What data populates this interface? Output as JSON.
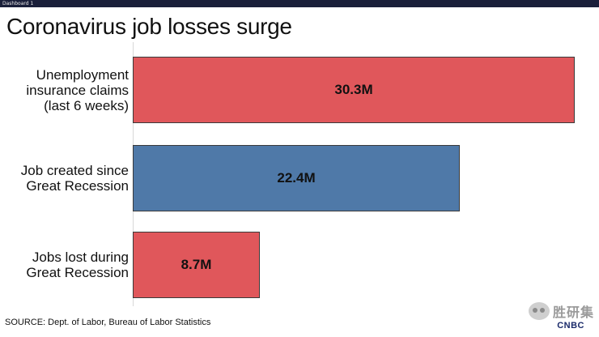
{
  "header": {
    "dashboard_label": "Dashboard 1"
  },
  "title": "Coronavirus job losses surge",
  "chart_data": {
    "type": "bar",
    "orientation": "horizontal",
    "title": "Coronavirus job losses surge",
    "xlabel": "",
    "ylabel": "",
    "categories": [
      "Unemployment\ninsurance claims\n(last 6 weeks)",
      "Job created since\nGreat Recession",
      "Jobs lost during\nGreat Recession"
    ],
    "values": [
      30.3,
      22.4,
      8.7
    ],
    "value_labels": [
      "30.3M",
      "22.4M",
      "8.7M"
    ],
    "colors": [
      "#e0575b",
      "#4f79a8",
      "#e0575b"
    ],
    "xlim": [
      0,
      30.3
    ],
    "grid": false
  },
  "source": "SOURCE: Dept. of Labor, Bureau of Labor Statistics",
  "watermark": {
    "text": "胜研集",
    "icon": "wechat-icon"
  },
  "brand": "CNBC"
}
